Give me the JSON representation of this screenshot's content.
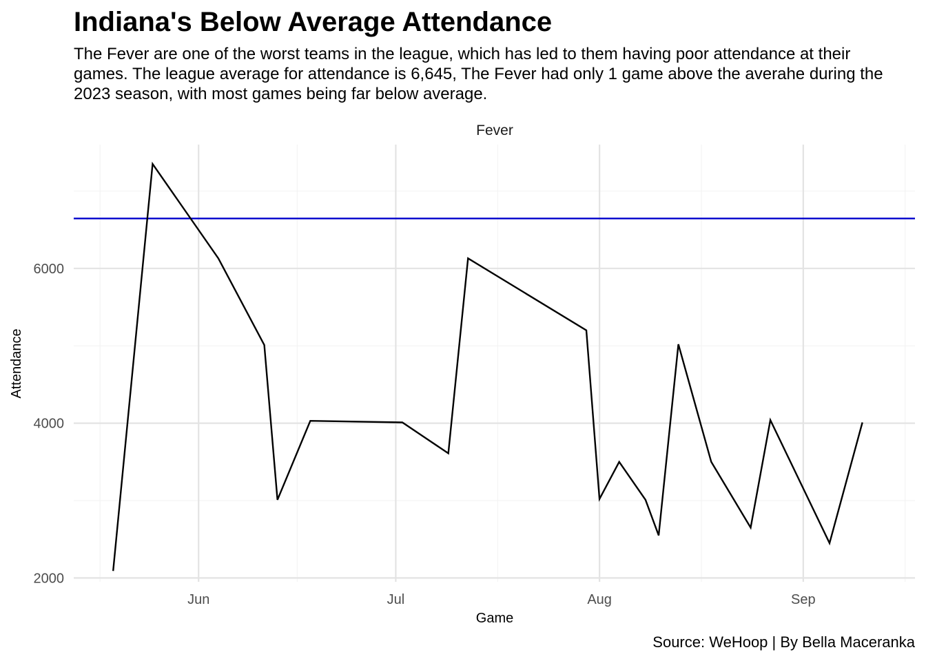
{
  "chart_data": {
    "type": "line",
    "title": "Indiana's Below Average Attendance",
    "subtitle": "The Fever are one of the worst teams in the league, which has led to them having poor attendance at their games. The league average for attendance is 6,645, The Fever had only 1 game above the averahe during the 2023 season, with most games being far below average.",
    "caption": "Source: WeHoop | By Bella Maceranka",
    "facet_label": "Fever",
    "xlabel": "Game",
    "ylabel": "Attendance",
    "xlim": [
      "2023-05-13",
      "2023-09-18"
    ],
    "ylim": [
      1950,
      7600
    ],
    "x_ticks": [
      {
        "date": "2023-06-01",
        "label": "Jun"
      },
      {
        "date": "2023-07-01",
        "label": "Jul"
      },
      {
        "date": "2023-08-01",
        "label": "Aug"
      },
      {
        "date": "2023-09-01",
        "label": "Sep"
      }
    ],
    "y_ticks": [
      2000,
      4000,
      6000
    ],
    "reference_line": {
      "value": 6645,
      "color": "#0000cc"
    },
    "line_color": "#000000",
    "grid": true,
    "series": [
      {
        "name": "",
        "points": [
          {
            "x": "2023-05-19",
            "y": 2090
          },
          {
            "x": "2023-05-25",
            "y": 7350
          },
          {
            "x": "2023-06-04",
            "y": 6130
          },
          {
            "x": "2023-06-11",
            "y": 5010
          },
          {
            "x": "2023-06-13",
            "y": 3010
          },
          {
            "x": "2023-06-18",
            "y": 4030
          },
          {
            "x": "2023-07-02",
            "y": 4010
          },
          {
            "x": "2023-07-09",
            "y": 3610
          },
          {
            "x": "2023-07-12",
            "y": 6130
          },
          {
            "x": "2023-07-30",
            "y": 5200
          },
          {
            "x": "2023-08-01",
            "y": 3020
          },
          {
            "x": "2023-08-04",
            "y": 3500
          },
          {
            "x": "2023-08-08",
            "y": 3010
          },
          {
            "x": "2023-08-10",
            "y": 2550
          },
          {
            "x": "2023-08-13",
            "y": 5020
          },
          {
            "x": "2023-08-18",
            "y": 3500
          },
          {
            "x": "2023-08-24",
            "y": 2650
          },
          {
            "x": "2023-08-27",
            "y": 4040
          },
          {
            "x": "2023-09-05",
            "y": 2450
          },
          {
            "x": "2023-09-10",
            "y": 4010
          }
        ]
      }
    ]
  }
}
